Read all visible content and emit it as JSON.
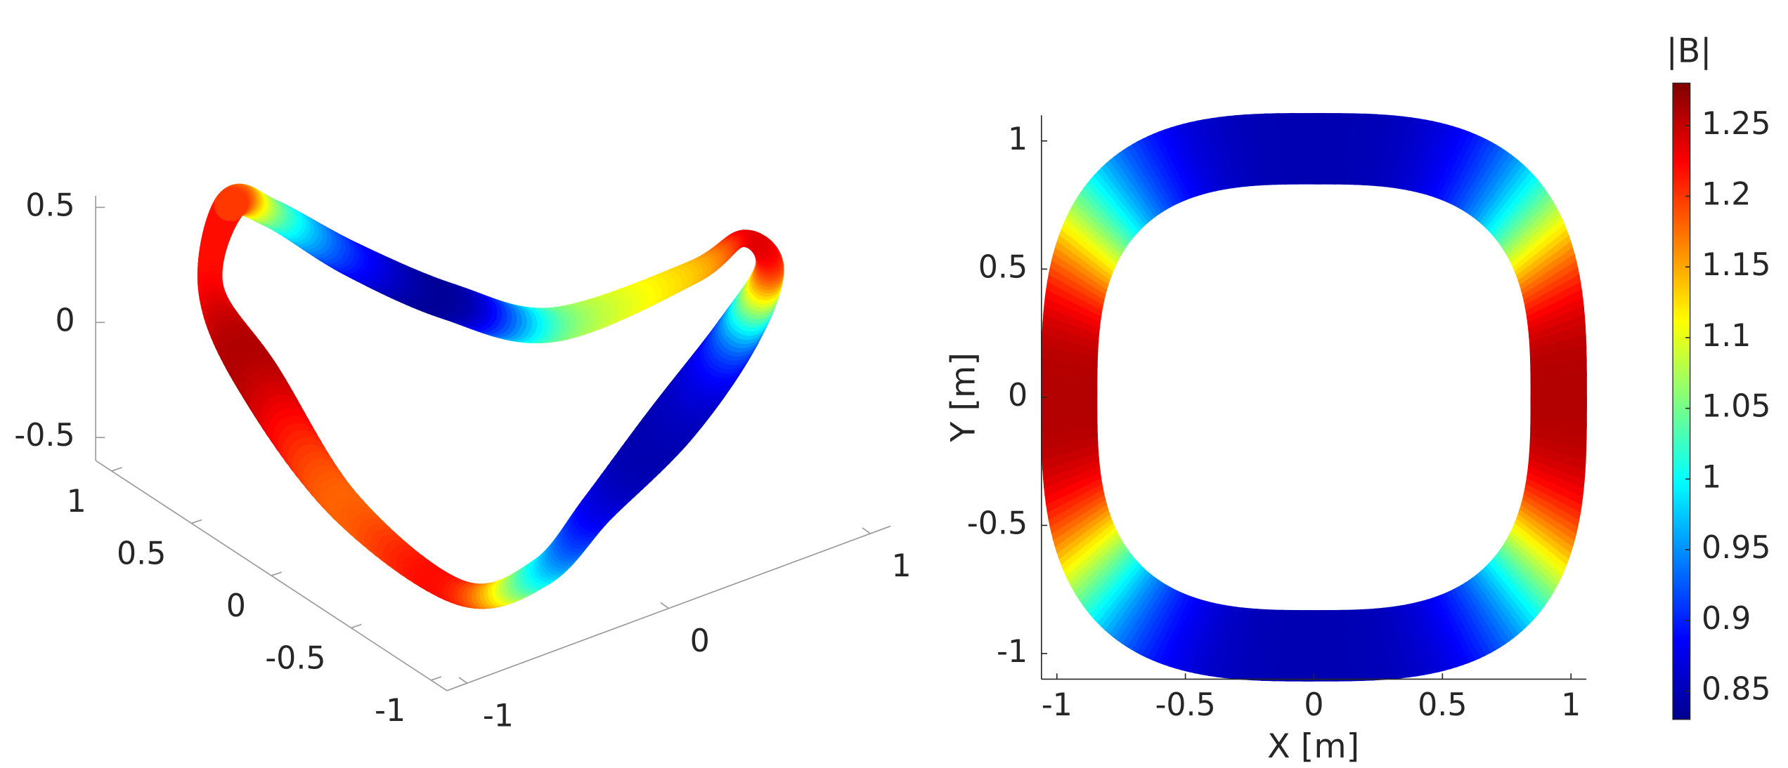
{
  "chart_data": [
    {
      "type": "surface3d",
      "xlim": [
        -1.1,
        1.1
      ],
      "xticks": [
        -1,
        0,
        1
      ],
      "ylim": [
        -1.1,
        1.1
      ],
      "yticks": [
        -1,
        -0.5,
        0,
        0.5,
        1
      ],
      "zlim": [
        -0.6,
        0.55
      ],
      "zticks": [
        -0.5,
        0,
        0.5
      ]
    },
    {
      "type": "surface2d",
      "xlabel": "X [m]",
      "ylabel": "Y [m]",
      "xlim": [
        -1.06,
        1.06
      ],
      "xticks": [
        -1,
        -0.5,
        0,
        0.5,
        1
      ],
      "ylim": [
        -1.1,
        1.1
      ],
      "yticks": [
        -1,
        -0.5,
        0,
        0.5,
        1
      ],
      "colorbar": {
        "label": "|B|",
        "lim": [
          0.83,
          1.28
        ],
        "ticks": [
          0.85,
          0.9,
          0.95,
          1,
          1.05,
          1.1,
          1.15,
          1.2,
          1.25
        ]
      }
    }
  ]
}
